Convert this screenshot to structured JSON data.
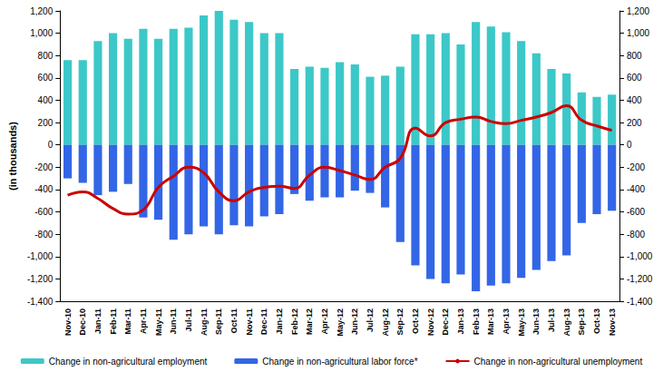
{
  "chart_data": {
    "type": "bar",
    "y_label": "(in thousands)",
    "categories": [
      "Nov-10",
      "Dec-10",
      "Jan-11",
      "Feb-11",
      "Mar-11",
      "Apr-11",
      "May-11",
      "Jun-11",
      "Jul-11",
      "Aug-11",
      "Sep-11",
      "Oct-11",
      "Nov-11",
      "Dec-11",
      "Jan-12",
      "Feb-12",
      "Mar-12",
      "Apr-12",
      "May-12",
      "Jun-12",
      "Jul-12",
      "Aug-12",
      "Sep-12",
      "Oct-12",
      "Nov-12",
      "Dec-12",
      "Jan-13",
      "Feb-13",
      "Mar-13",
      "Apr-13",
      "May-13",
      "Jun-13",
      "Jul-13",
      "Aug-13",
      "Sep-13",
      "Oct-13",
      "Nov-13"
    ],
    "series": [
      {
        "name": "Change in non-agricultural employment",
        "type": "bar",
        "color": "#3cc8c8",
        "values": [
          760,
          760,
          930,
          1000,
          950,
          1040,
          950,
          1040,
          1050,
          1160,
          1200,
          1120,
          1100,
          1000,
          1000,
          680,
          700,
          690,
          740,
          720,
          610,
          620,
          700,
          990,
          990,
          1000,
          900,
          1100,
          1060,
          1010,
          930,
          820,
          680,
          640,
          470,
          430,
          450
        ]
      },
      {
        "name": "Change in non-agricultural labor force*",
        "type": "bar",
        "color": "#3366e6",
        "values": [
          -300,
          -340,
          -450,
          -420,
          -350,
          -650,
          -670,
          -850,
          -800,
          -730,
          -800,
          -720,
          -730,
          -640,
          -620,
          -440,
          -500,
          -470,
          -470,
          -410,
          -430,
          -560,
          -870,
          -1080,
          -1200,
          -1240,
          -1160,
          -1310,
          -1260,
          -1240,
          -1190,
          -1120,
          -1040,
          -990,
          -700,
          -620,
          -590
        ]
      },
      {
        "name": "Change in non-agricultural unemployment",
        "type": "line",
        "color": "#cc0000",
        "values": [
          -450,
          -420,
          -480,
          -570,
          -620,
          -580,
          -380,
          -280,
          -200,
          -250,
          -420,
          -500,
          -420,
          -380,
          -370,
          -390,
          -270,
          -200,
          -230,
          -270,
          -310,
          -200,
          -120,
          150,
          80,
          200,
          230,
          250,
          210,
          190,
          220,
          250,
          290,
          350,
          220,
          170,
          130
        ]
      }
    ],
    "ylim": [
      -1400,
      1200
    ],
    "yticks": [
      -1400,
      -1200,
      -1000,
      -800,
      -600,
      -400,
      -200,
      0,
      200,
      400,
      600,
      800,
      1000,
      1200
    ],
    "y2lim": [
      -1400,
      1200
    ],
    "y2ticks": [
      -1400,
      -1200,
      -1000,
      -800,
      -600,
      -400,
      -200,
      0,
      200,
      400,
      600,
      800,
      1000,
      1200
    ],
    "grid": false,
    "legend": "bottom"
  }
}
